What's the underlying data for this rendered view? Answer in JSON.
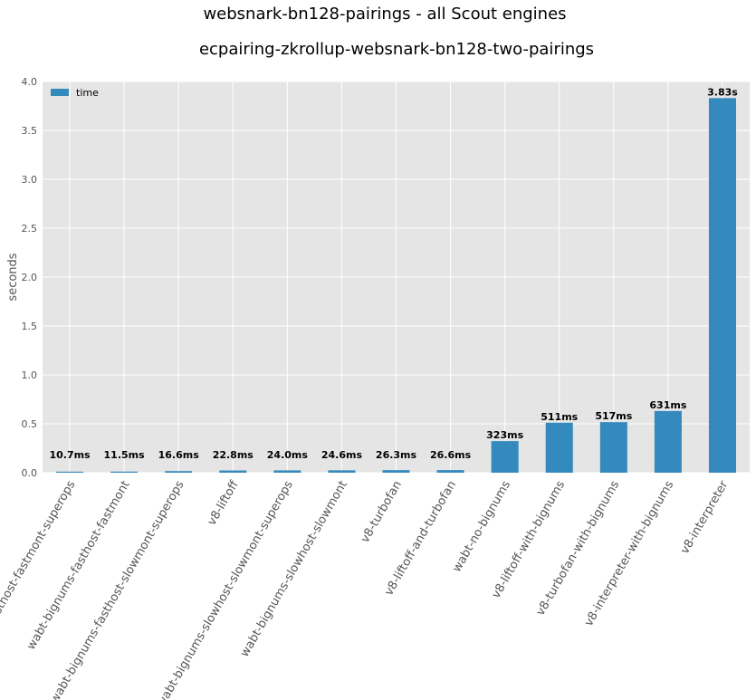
{
  "chart_data": {
    "type": "bar",
    "suptitle": "websnark-bn128-pairings - all Scout engines",
    "title": "ecpairing-zkrollup-websnark-bn128-two-pairings",
    "xlabel": "",
    "ylabel": "seconds",
    "ylim": [
      0,
      4.0
    ],
    "yticks": [
      "0.0",
      "0.5",
      "1.0",
      "1.5",
      "2.0",
      "2.5",
      "3.0",
      "3.5",
      "4.0"
    ],
    "grid": true,
    "legend": {
      "placement": "top-left",
      "entries": [
        "time"
      ]
    },
    "colors": {
      "bar": "#348abd",
      "background": "#e5e5e5",
      "grid": "#ffffff"
    },
    "categories": [
      "wabt-bignums-fasthost-fastmont-superops",
      "wabt-bignums-fasthost-fastmont",
      "wabt-bignums-fasthost-slowmont-superops",
      "v8-liftoff",
      "wabt-bignums-slowhost-slowmont-superops",
      "wabt-bignums-slowhost-slowmont",
      "v8-turbofan",
      "v8-liftoff-and-turbofan",
      "wabt-no-bignums",
      "v8-liftoff-with-bignums",
      "v8-turbofan-with-bignums",
      "v8-interpreter-with-bignums",
      "v8-interpreter"
    ],
    "series": [
      {
        "name": "time",
        "values": [
          0.0107,
          0.0115,
          0.0166,
          0.0228,
          0.024,
          0.0246,
          0.0263,
          0.0266,
          0.323,
          0.511,
          0.517,
          0.631,
          3.83
        ]
      }
    ],
    "data_labels": [
      "10.7ms",
      "11.5ms",
      "16.6ms",
      "22.8ms",
      "24.0ms",
      "24.6ms",
      "26.3ms",
      "26.6ms",
      "323ms",
      "511ms",
      "517ms",
      "631ms",
      "3.83s"
    ]
  }
}
